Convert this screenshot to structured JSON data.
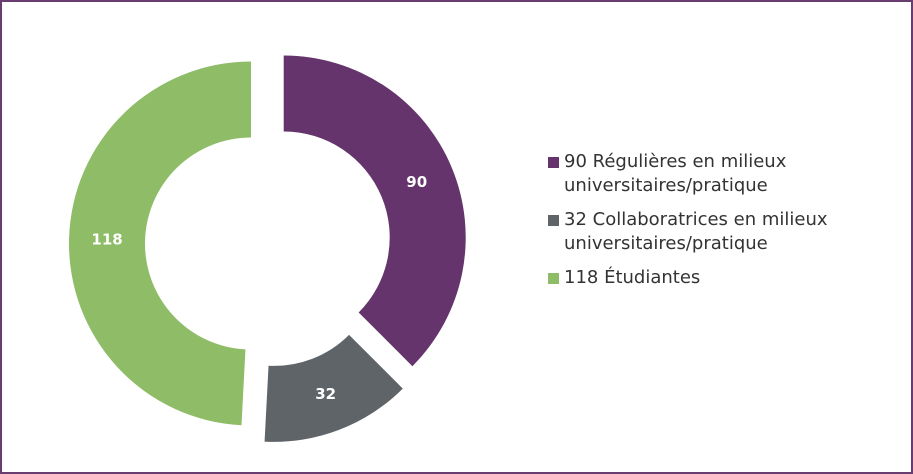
{
  "chart_data": {
    "type": "pie",
    "donut": true,
    "categories": [
      "90 Régulières en milieux universitaires/pratique",
      "32 Collaboratrices en milieux universitaires/pratique",
      "118 Étudiantes"
    ],
    "values": [
      90,
      32,
      118
    ],
    "colors": [
      "#65346c",
      "#5f6468",
      "#8fbc66"
    ]
  }
}
